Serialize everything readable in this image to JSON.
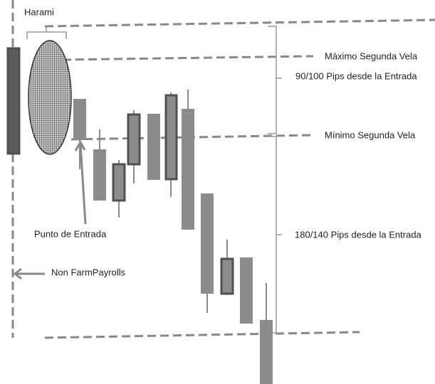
{
  "labels": {
    "harami": "Harami",
    "max_second": "Máximo Segunda Vela",
    "pips_up": "90/100 Pips desde la Entrada",
    "min_second": "Mínimo Segunda Vela",
    "entry": "Punto de Entrada",
    "pips_down": "180/140  Pips desde la Entrada",
    "nfp": "Non FarmPayrolls"
  }
}
